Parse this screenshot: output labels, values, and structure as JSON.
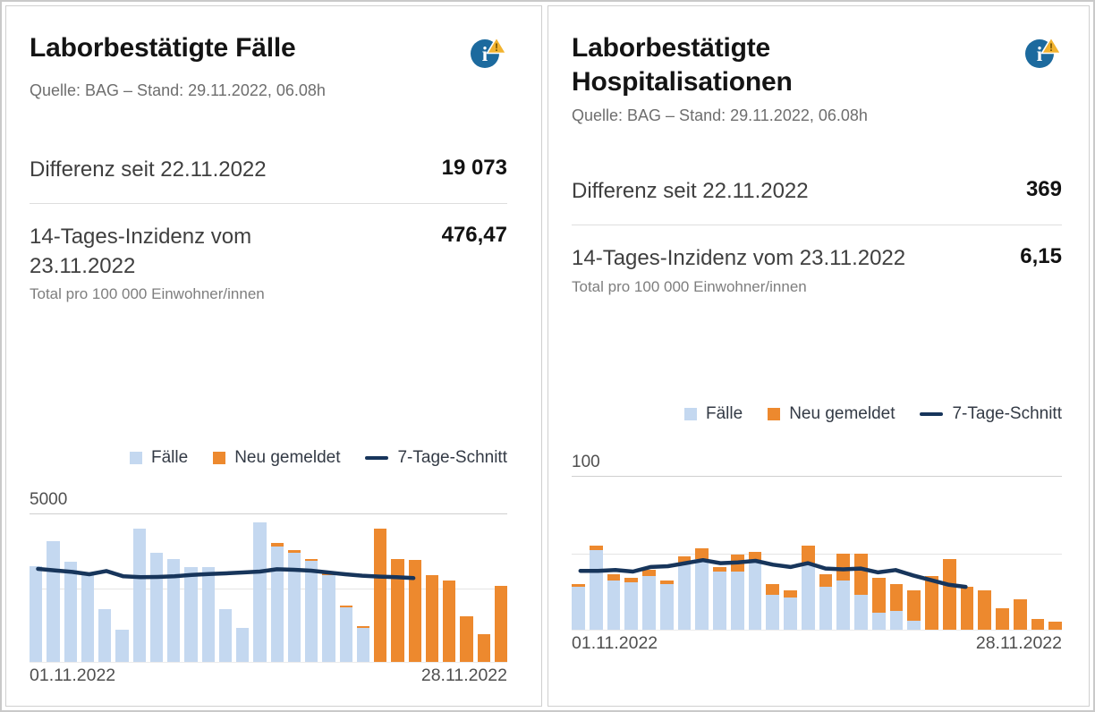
{
  "colors": {
    "bar_blue": "#C4D8F0",
    "bar_orange": "#ED892E",
    "line_navy": "#17355B",
    "info_blue": "#1C6A9E",
    "warn_yellow": "#F2B32F"
  },
  "cards": [
    {
      "title": "Laborbestätigte Fälle",
      "source": "Quelle: BAG – Stand: 29.11.2022, 06.08h",
      "stats": [
        {
          "label": "Differenz seit 22.11.2022",
          "value": "19 073"
        },
        {
          "label": "14-Tages-Inzidenz vom 23.11.2022",
          "value": "476,47",
          "sublabel": "Total pro 100 000 Einwohner/innen"
        }
      ],
      "chart_data": {
        "type": "bar",
        "stacked": true,
        "x_first_label": "01.11.2022",
        "x_last_label": "28.11.2022",
        "ymax_label": "5000",
        "ylim": [
          0,
          5000
        ],
        "gridlines": [
          2500,
          5000
        ],
        "legend": [
          "Fälle",
          "Neu gemeldet",
          "7-Tage-Schnitt"
        ],
        "series": [
          {
            "name": "Fälle",
            "values": [
              3240,
              4100,
              3390,
              2930,
              1780,
              1100,
              4520,
              3700,
              3490,
              3210,
              3210,
              1780,
              1150,
              4720,
              3920,
              3700,
              3430,
              2930,
              1850,
              1140,
              0,
              0,
              0,
              0,
              0,
              0,
              0,
              0
            ]
          },
          {
            "name": "Neu gemeldet",
            "values": [
              0,
              0,
              0,
              0,
              0,
              0,
              0,
              0,
              0,
              0,
              0,
              0,
              0,
              0,
              100,
              90,
              60,
              60,
              50,
              60,
              4510,
              3490,
              3460,
              2930,
              2750,
              1540,
              930,
              2590
            ]
          },
          {
            "name": "7-Tage-Schnitt",
            "type": "line",
            "values": [
              3150,
              3100,
              3050,
              2970,
              3080,
              2900,
              2870,
              2880,
              2900,
              2950,
              2980,
              3000,
              3030,
              3060,
              3140,
              3120,
              3090,
              3030,
              2970,
              2920,
              2890,
              2870,
              2840,
              null,
              null,
              null,
              null,
              null
            ]
          }
        ]
      }
    },
    {
      "title": "Laborbestätigte Hospitalisationen",
      "source": "Quelle: BAG – Stand: 29.11.2022, 06.08h",
      "stats": [
        {
          "label": "Differenz seit 22.11.2022",
          "value": "369"
        },
        {
          "label": "14-Tages-Inzidenz vom 23.11.2022",
          "value": "6,15",
          "sublabel": "Total pro 100 000 Einwohner/innen"
        }
      ],
      "chart_data": {
        "type": "bar",
        "stacked": true,
        "x_first_label": "01.11.2022",
        "x_last_label": "28.11.2022",
        "ymax_label": "100",
        "ylim": [
          0,
          100
        ],
        "gridlines": [
          50,
          100
        ],
        "legend": [
          "Fälle",
          "Neu gemeldet",
          "7-Tage-Schnitt"
        ],
        "series": [
          {
            "name": "Fälle",
            "values": [
              28,
              52,
              32,
              31,
              35,
              30,
              43,
              46,
              38,
              38,
              44,
              23,
              21,
              42,
              28,
              32,
              23,
              11,
              12,
              6,
              0,
              0,
              0,
              0,
              0,
              0,
              0,
              0
            ]
          },
          {
            "name": "Neu gemeldet",
            "values": [
              2,
              3,
              4,
              3,
              4,
              2,
              5,
              7,
              3,
              11,
              7,
              7,
              5,
              13,
              8,
              18,
              27,
              23,
              18,
              20,
              35,
              46,
              28,
              26,
              14,
              20,
              7,
              5
            ]
          },
          {
            "name": "7-Tage-Schnitt",
            "type": "line",
            "values": [
              38.5,
              38.5,
              39,
              38,
              41,
              41.5,
              43.5,
              45.5,
              43.5,
              44,
              45,
              42.5,
              41,
              43.5,
              40,
              39.5,
              40,
              37.5,
              39,
              35.5,
              32.5,
              29.5,
              28,
              null,
              null,
              null,
              null,
              null
            ]
          }
        ]
      }
    }
  ]
}
